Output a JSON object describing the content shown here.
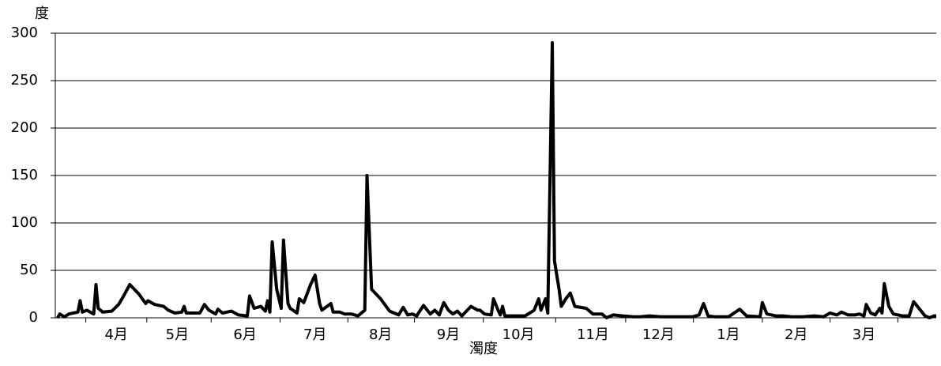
{
  "chart_data": {
    "type": "line",
    "y_label": "度",
    "x_label": "濁度",
    "color": "#000000",
    "grid": true,
    "ylim": [
      0,
      300
    ],
    "yticks": [
      0,
      50,
      100,
      150,
      200,
      250,
      300
    ],
    "xlim": [
      0,
      390
    ],
    "xticks": [
      {
        "value": 27,
        "label": "4月"
      },
      {
        "value": 54,
        "label": "5月"
      },
      {
        "value": 84,
        "label": "6月"
      },
      {
        "value": 115,
        "label": "7月"
      },
      {
        "value": 144,
        "label": "8月"
      },
      {
        "value": 174,
        "label": "9月"
      },
      {
        "value": 205,
        "label": "10月"
      },
      {
        "value": 238,
        "label": "11月"
      },
      {
        "value": 267,
        "label": "12月"
      },
      {
        "value": 298,
        "label": "1月"
      },
      {
        "value": 328,
        "label": "2月"
      },
      {
        "value": 358,
        "label": "3月"
      }
    ],
    "x": [
      1,
      2,
      4,
      6,
      10,
      11,
      12,
      14,
      17,
      18,
      19,
      21,
      25,
      28,
      30,
      33,
      37,
      40,
      41,
      44,
      48,
      50,
      53,
      56,
      57,
      58,
      64,
      66,
      68,
      71,
      72,
      74,
      78,
      81,
      85,
      86,
      88,
      91,
      93,
      94,
      95,
      96,
      98,
      100,
      101,
      103,
      104,
      107,
      108,
      110,
      113,
      115,
      117,
      118,
      122,
      123,
      126,
      128,
      131,
      134,
      136,
      137,
      138,
      140,
      144,
      148,
      150,
      152,
      154,
      156,
      158,
      160,
      163,
      166,
      168,
      170,
      172,
      174,
      176,
      178,
      180,
      182,
      184,
      187,
      188,
      190,
      193,
      194,
      196,
      197,
      198,
      199,
      203,
      208,
      212,
      214,
      215,
      217,
      218,
      220,
      221,
      223,
      224,
      226,
      228,
      230,
      235,
      238,
      242,
      244,
      247,
      251,
      256,
      259,
      263,
      268,
      273,
      277,
      282,
      285,
      287,
      289,
      292,
      298,
      303,
      306,
      312,
      313,
      315,
      319,
      322,
      326,
      331,
      336,
      340,
      343,
      346,
      348,
      351,
      354,
      356,
      358,
      359,
      361,
      363,
      365,
      366,
      367,
      369,
      371,
      375,
      378,
      380,
      383,
      385,
      387,
      389,
      390
    ],
    "values": [
      0,
      4,
      1,
      4,
      6,
      18,
      6,
      8,
      4,
      35,
      10,
      6,
      7,
      14,
      22,
      35,
      25,
      15,
      18,
      14,
      12,
      8,
      5,
      6,
      12,
      5,
      5,
      14,
      8,
      4,
      9,
      5,
      7,
      3,
      2,
      23,
      10,
      12,
      7,
      18,
      6,
      80,
      30,
      10,
      82,
      15,
      10,
      5,
      20,
      16,
      35,
      45,
      15,
      8,
      15,
      6,
      6,
      4,
      4,
      2,
      6,
      8,
      150,
      30,
      20,
      7,
      5,
      3,
      11,
      3,
      4,
      2,
      13,
      4,
      8,
      3,
      16,
      8,
      4,
      7,
      2,
      7,
      12,
      8,
      8,
      4,
      3,
      20,
      8,
      3,
      12,
      2,
      2,
      2,
      8,
      20,
      8,
      20,
      5,
      290,
      60,
      30,
      12,
      20,
      26,
      12,
      10,
      4,
      4,
      0,
      3,
      2,
      1,
      1,
      2,
      1,
      1,
      1,
      1,
      3,
      15,
      2,
      1,
      1,
      9,
      2,
      1,
      16,
      4,
      2,
      2,
      1,
      1,
      2,
      1,
      5,
      3,
      6,
      3,
      3,
      4,
      2,
      14,
      5,
      3,
      10,
      5,
      36,
      12,
      4,
      2,
      2,
      17,
      8,
      2,
      0,
      2,
      2
    ]
  }
}
